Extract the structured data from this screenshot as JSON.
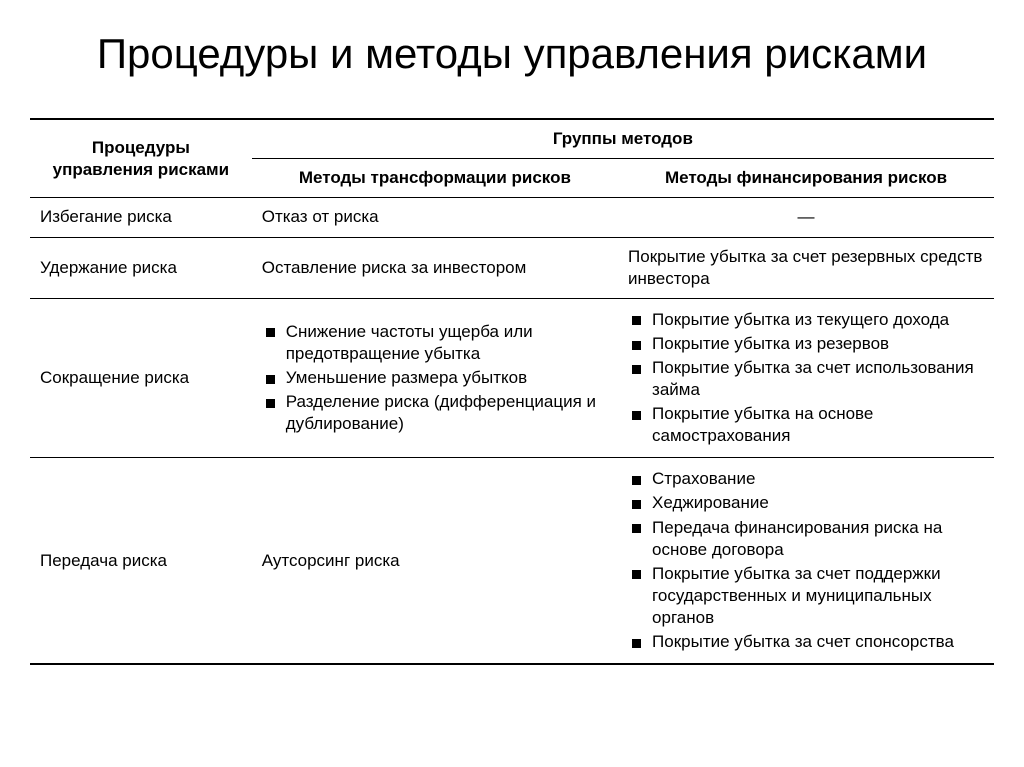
{
  "title": "Процедуры и методы управления рисками",
  "table": {
    "header": {
      "col1": "Процедуры управления рисками",
      "group": "Группы методов",
      "sub1": "Методы трансформации рисков",
      "sub2": "Методы финансирования рисков"
    },
    "rows": [
      {
        "proc": "Избегание риска",
        "trans_text": "Отказ от риска",
        "fin_text": "—",
        "fin_center": true
      },
      {
        "proc": "Удержание риска",
        "trans_text": "Оставление риска за инвестором",
        "fin_text": "Покрытие убытка за счет резервных средств инвестора"
      },
      {
        "proc": "Сокращение риска",
        "trans_list": [
          "Снижение частоты ущерба или предотвращение убытка",
          "Уменьшение размера убытков",
          "Разделение риска (дифференциация и дублирование)"
        ],
        "fin_list": [
          "Покрытие убытка из текущего дохода",
          "Покрытие убытка из резервов",
          "Покрытие убытка за счет использования займа",
          "Покрытие убытка на основе самострахования"
        ]
      },
      {
        "proc": "Передача риска",
        "trans_text": "Аутсорсинг риска",
        "fin_list": [
          "Страхование",
          "Хеджирование",
          "Передача финансирования риска на основе договора",
          "Покрытие убытка за счет поддержки государственных и муниципальных органов",
          "Покрытие убытка за счет спонсорства"
        ]
      }
    ]
  },
  "style": {
    "background": "#ffffff",
    "text_color": "#000000",
    "border_color": "#000000",
    "title_fontsize": 42,
    "body_fontsize": 17,
    "bullet_size": 9
  }
}
